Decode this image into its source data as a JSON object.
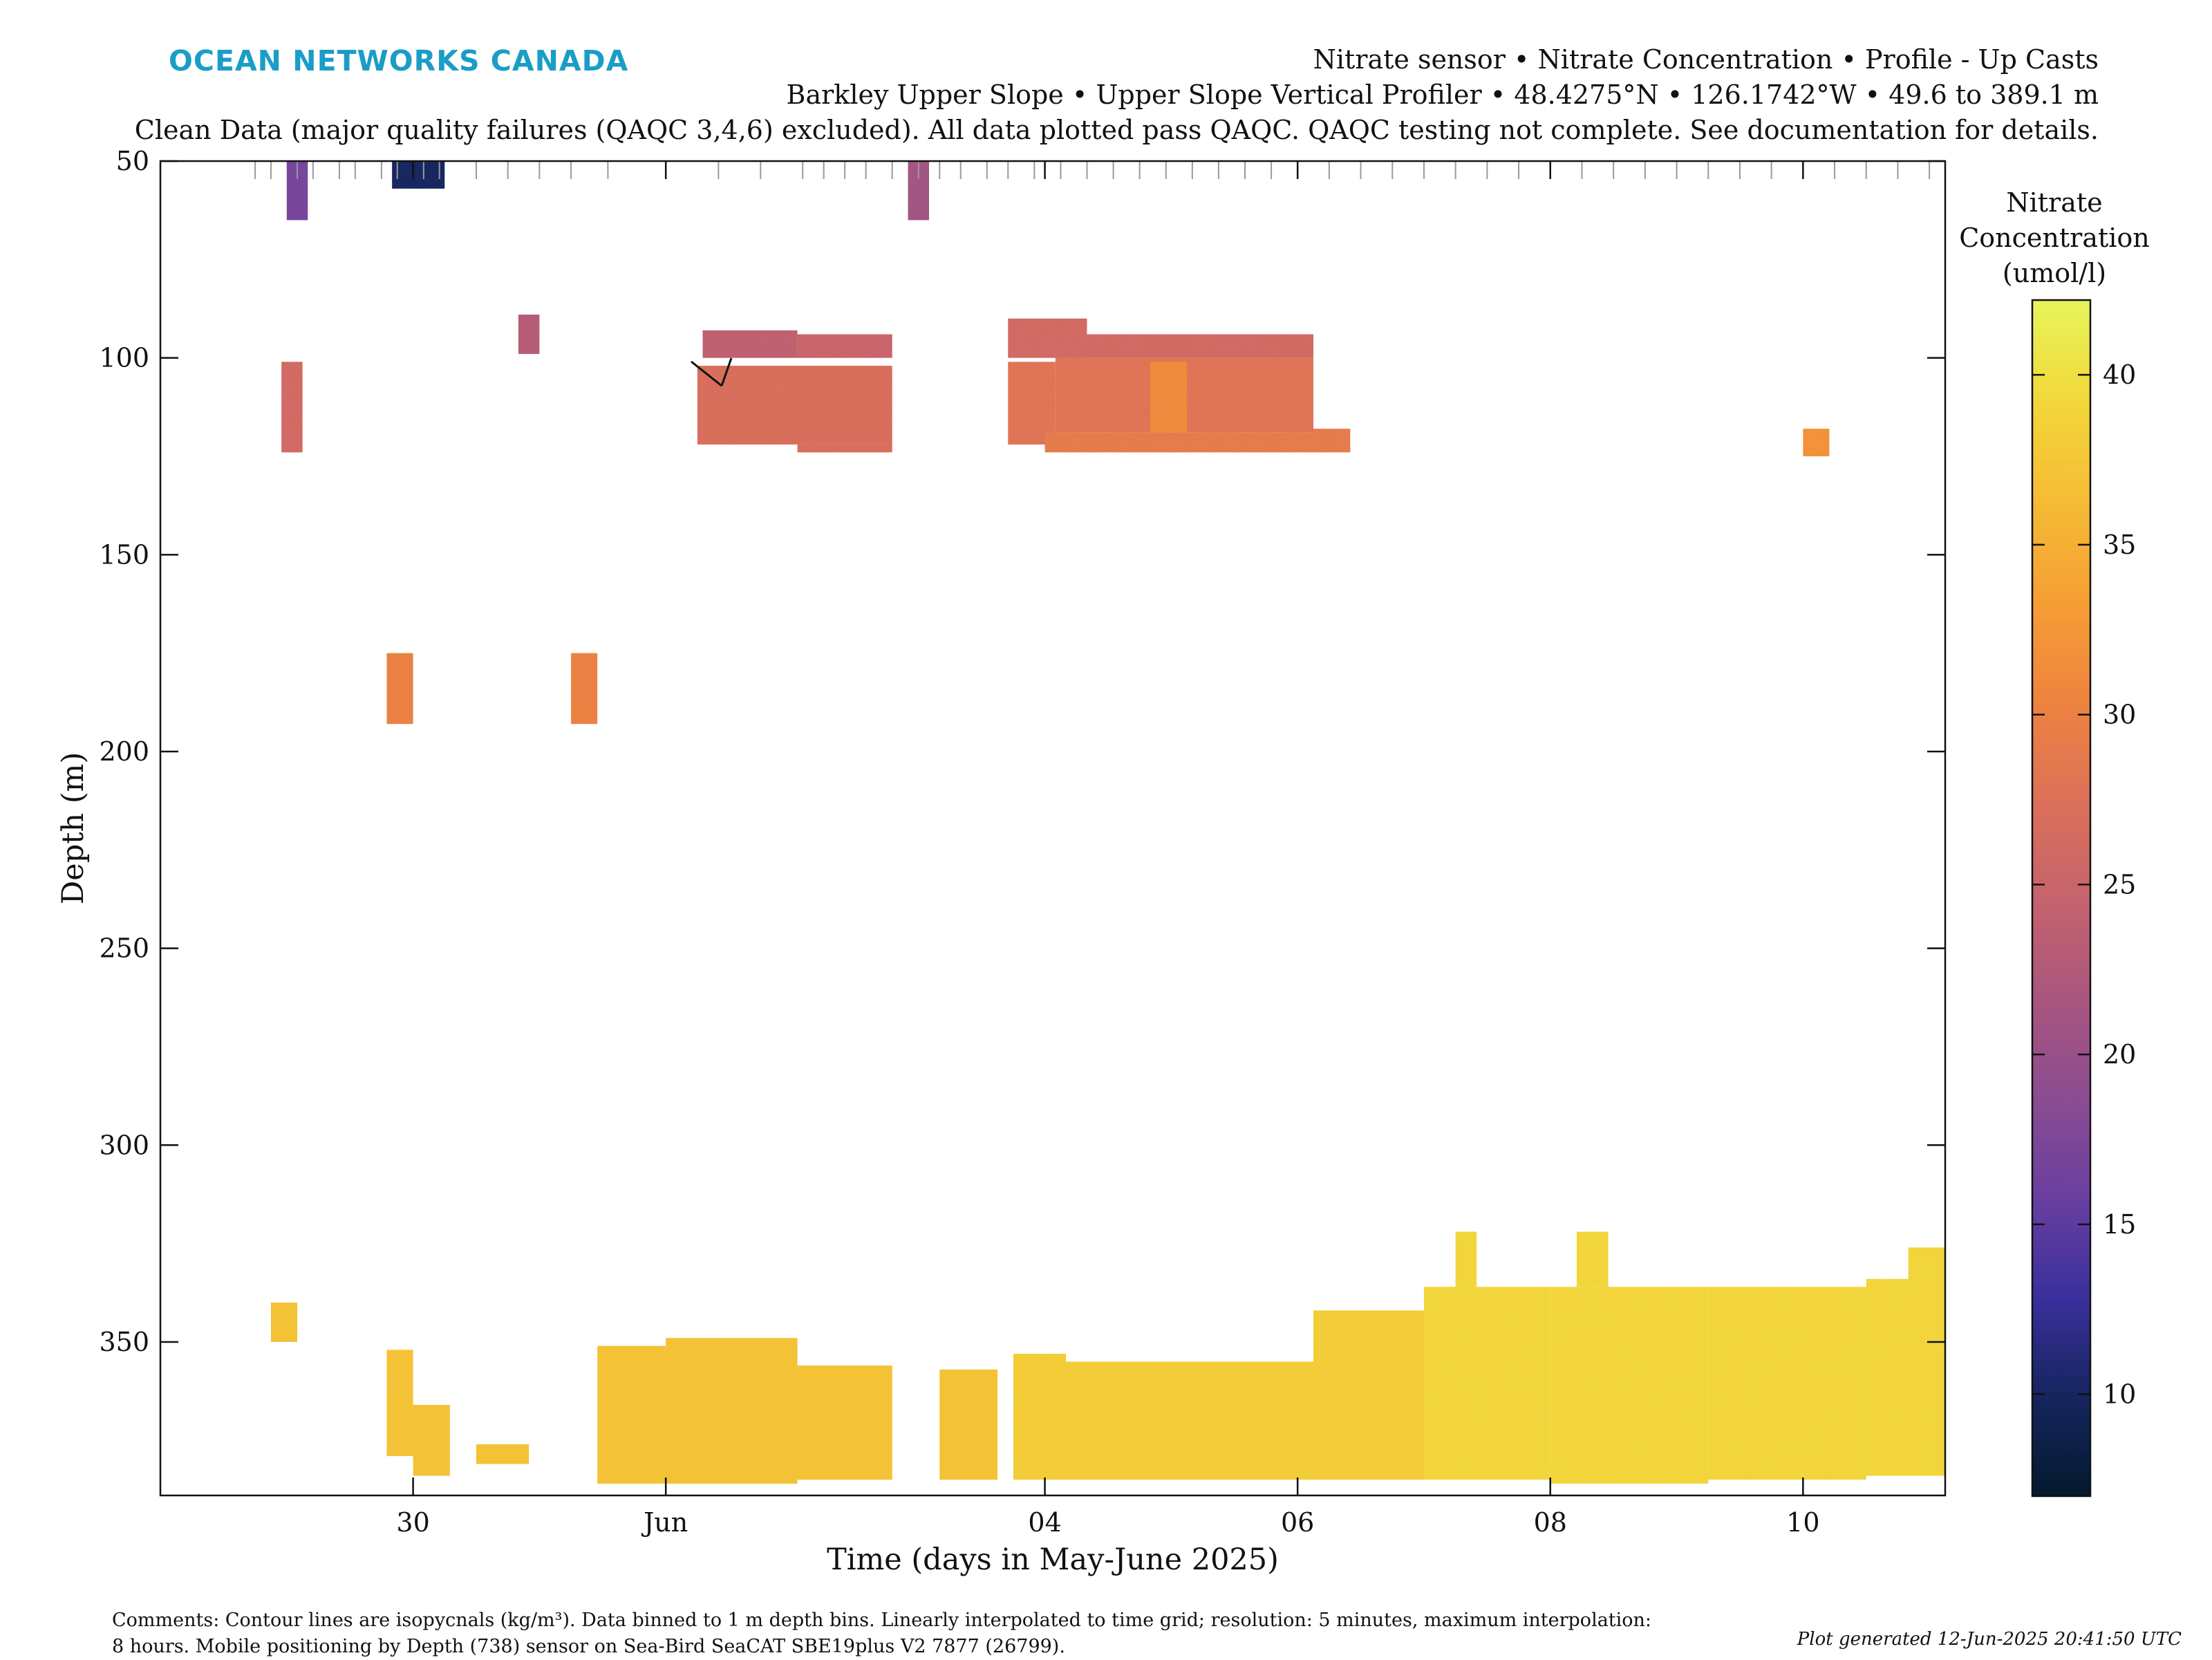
{
  "header": {
    "brand": "OCEAN NETWORKS CANADA",
    "line1": "Nitrate sensor • Nitrate Concentration • Profile - Up Casts",
    "line2": "Barkley Upper Slope • Upper Slope Vertical Profiler • 48.4275°N • 126.1742°W • 49.6 to 389.1 m",
    "line3": "Clean Data (major quality failures (QAQC 3,4,6) excluded). All data plotted pass QAQC. QAQC testing not complete. See documentation for details."
  },
  "colors": {
    "colormap": [
      "#04192e",
      "#15255e",
      "#3a2f9c",
      "#6a3fa0",
      "#8b4c91",
      "#a9567e",
      "#c6636d",
      "#dc7158",
      "#ee843f",
      "#f69f34",
      "#f5bc35",
      "#f2d83a",
      "#e7f55c"
    ],
    "axis": "#111111",
    "brand": "#1a9dc6"
  },
  "chart_data": {
    "type": "heatmap",
    "xlabel": "Time (days in May-June 2025)",
    "ylabel": "Depth (m)",
    "xlim": [
      "2025-05-28 00:00",
      "2025-06-11 03:00"
    ],
    "ylim": [
      389,
      50
    ],
    "y_reversed": true,
    "x_ticks": [
      {
        "t": "2025-05-30",
        "label": "30"
      },
      {
        "t": "2025-06-01",
        "label": "Jun"
      },
      {
        "t": "2025-06-04",
        "label": "04"
      },
      {
        "t": "2025-06-06",
        "label": "06"
      },
      {
        "t": "2025-06-08",
        "label": "08"
      },
      {
        "t": "2025-06-10",
        "label": "10"
      }
    ],
    "y_ticks": [
      50,
      100,
      150,
      200,
      250,
      300,
      350
    ],
    "colorbar": {
      "title": "Nitrate Concentration (umol/l)",
      "title_lines": [
        "Nitrate",
        "Concentration",
        "(umol/l)"
      ],
      "min": 7,
      "max": 42.2,
      "ticks": [
        10,
        15,
        20,
        25,
        30,
        35,
        40
      ]
    },
    "cast_times": [
      "2025-05-28 18:00",
      "2025-05-28 21:00",
      "2025-05-29 02:00",
      "2025-05-29 05:00",
      "2025-05-29 10:00",
      "2025-05-29 13:00",
      "2025-05-29 18:00",
      "2025-05-29 21:00",
      "2025-05-30 02:00",
      "2025-05-30 05:00",
      "2025-05-30 12:00",
      "2025-05-30 18:00",
      "2025-05-31 00:00",
      "2025-05-31 06:00",
      "2025-05-31 13:00",
      "2025-06-01 00:00",
      "2025-06-01 10:00",
      "2025-06-01 18:00",
      "2025-06-02 02:00",
      "2025-06-02 06:00",
      "2025-06-02 10:00",
      "2025-06-02 14:00",
      "2025-06-02 19:00",
      "2025-06-03 00:00",
      "2025-06-03 04:00",
      "2025-06-03 08:00",
      "2025-06-03 13:00",
      "2025-06-03 17:00",
      "2025-06-03 22:00",
      "2025-06-04 03:00",
      "2025-06-04 08:00",
      "2025-06-04 13:00",
      "2025-06-04 18:00",
      "2025-06-04 23:00",
      "2025-06-05 04:00",
      "2025-06-05 09:00",
      "2025-06-05 14:00",
      "2025-06-05 19:00",
      "2025-06-06 00:00",
      "2025-06-06 06:00",
      "2025-06-06 12:00",
      "2025-06-06 18:00",
      "2025-06-07 00:00",
      "2025-06-07 06:00",
      "2025-06-07 12:00",
      "2025-06-07 18:00",
      "2025-06-08 00:00",
      "2025-06-08 06:00",
      "2025-06-08 12:00",
      "2025-06-08 18:00",
      "2025-06-09 00:00",
      "2025-06-09 06:00",
      "2025-06-09 12:00",
      "2025-06-09 18:00",
      "2025-06-10 00:00",
      "2025-06-10 06:00",
      "2025-06-10 12:00",
      "2025-06-10 18:00",
      "2025-06-11 00:00"
    ],
    "bins": [
      {
        "t0": "2025-05-29 00:00",
        "t1": "2025-05-29 04:00",
        "z0": 50,
        "z1": 65,
        "v": 17
      },
      {
        "t0": "2025-05-29 20:00",
        "t1": "2025-05-30 06:00",
        "z0": 50,
        "z1": 57,
        "v": 10
      },
      {
        "t0": "2025-06-02 22:00",
        "t1": "2025-06-03 02:00",
        "z0": 50,
        "z1": 65,
        "v": 21
      },
      {
        "t0": "2025-05-28 23:00",
        "t1": "2025-05-29 03:00",
        "z0": 101,
        "z1": 124,
        "v": 26
      },
      {
        "t0": "2025-05-30 20:00",
        "t1": "2025-05-31 00:00",
        "z0": 89,
        "z1": 99,
        "v": 23
      },
      {
        "t0": "2025-05-29 19:00",
        "t1": "2025-05-30 00:00",
        "z0": 175,
        "z1": 193,
        "v": 30
      },
      {
        "t0": "2025-05-31 06:00",
        "t1": "2025-05-31 11:00",
        "z0": 175,
        "z1": 193,
        "v": 30
      },
      {
        "t0": "2025-06-01 07:00",
        "t1": "2025-06-02 01:00",
        "z0": 93,
        "z1": 100,
        "v": 24
      },
      {
        "t0": "2025-06-02 01:00",
        "t1": "2025-06-02 19:00",
        "z0": 94,
        "z1": 100,
        "v": 25
      },
      {
        "t0": "2025-06-01 06:00",
        "t1": "2025-06-02 19:00",
        "z0": 102,
        "z1": 122,
        "v": 27
      },
      {
        "t0": "2025-06-02 01:00",
        "t1": "2025-06-02 19:00",
        "z0": 122,
        "z1": 124,
        "v": 27
      },
      {
        "t0": "2025-06-03 18:00",
        "t1": "2025-06-04 02:00",
        "z0": 93,
        "z1": 99,
        "v": 26
      },
      {
        "t0": "2025-06-03 17:00",
        "t1": "2025-06-04 02:00",
        "z0": 101,
        "z1": 122,
        "v": 28
      },
      {
        "t0": "2025-06-03 17:00",
        "t1": "2025-06-04 08:00",
        "z0": 90,
        "z1": 100,
        "v": 26
      },
      {
        "t0": "2025-06-04 02:00",
        "t1": "2025-06-06 03:00",
        "z0": 94,
        "z1": 100,
        "v": 26
      },
      {
        "t0": "2025-06-04 02:00",
        "t1": "2025-06-06 03:00",
        "z0": 100,
        "z1": 119,
        "v": 28
      },
      {
        "t0": "2025-06-04 20:00",
        "t1": "2025-06-05 03:00",
        "z0": 101,
        "z1": 119,
        "v": 31
      },
      {
        "t0": "2025-06-04 00:00",
        "t1": "2025-06-06 03:00",
        "z0": 119,
        "z1": 124,
        "v": 29
      },
      {
        "t0": "2025-06-06 03:00",
        "t1": "2025-06-06 10:00",
        "z0": 118,
        "z1": 124,
        "v": 29
      },
      {
        "t0": "2025-06-10 00:00",
        "t1": "2025-06-10 05:00",
        "z0": 118,
        "z1": 125,
        "v": 32
      },
      {
        "t0": "2025-05-28 21:00",
        "t1": "2025-05-29 02:00",
        "z0": 340,
        "z1": 350,
        "v": 37
      },
      {
        "t0": "2025-05-29 19:00",
        "t1": "2025-05-30 00:00",
        "z0": 352,
        "z1": 379,
        "v": 37
      },
      {
        "t0": "2025-05-30 00:00",
        "t1": "2025-05-30 07:00",
        "z0": 366,
        "z1": 384,
        "v": 37
      },
      {
        "t0": "2025-05-30 12:00",
        "t1": "2025-05-30 22:00",
        "z0": 376,
        "z1": 381,
        "v": 37
      },
      {
        "t0": "2025-05-31 11:00",
        "t1": "2025-06-01 00:00",
        "z0": 351,
        "z1": 386,
        "v": 37
      },
      {
        "t0": "2025-06-01 00:00",
        "t1": "2025-06-02 01:00",
        "z0": 349,
        "z1": 386,
        "v": 37
      },
      {
        "t0": "2025-06-02 01:00",
        "t1": "2025-06-02 19:00",
        "z0": 356,
        "z1": 385,
        "v": 37
      },
      {
        "t0": "2025-06-03 04:00",
        "t1": "2025-06-03 15:00",
        "z0": 357,
        "z1": 385,
        "v": 37
      },
      {
        "t0": "2025-06-03 18:00",
        "t1": "2025-06-04 04:00",
        "z0": 353,
        "z1": 385,
        "v": 38
      },
      {
        "t0": "2025-06-04 04:00",
        "t1": "2025-06-06 03:00",
        "z0": 355,
        "z1": 385,
        "v": 38
      },
      {
        "t0": "2025-06-06 03:00",
        "t1": "2025-06-07 00:00",
        "z0": 342,
        "z1": 385,
        "v": 38
      },
      {
        "t0": "2025-06-07 00:00",
        "t1": "2025-06-08 00:00",
        "z0": 336,
        "z1": 385,
        "v": 39
      },
      {
        "t0": "2025-06-08 00:00",
        "t1": "2025-06-09 06:00",
        "z0": 336,
        "z1": 386,
        "v": 39
      },
      {
        "t0": "2025-06-09 06:00",
        "t1": "2025-06-10 12:00",
        "z0": 336,
        "z1": 385,
        "v": 39
      },
      {
        "t0": "2025-06-10 12:00",
        "t1": "2025-06-11 03:00",
        "z0": 334,
        "z1": 384,
        "v": 39
      },
      {
        "t0": "2025-06-07 06:00",
        "t1": "2025-06-07 10:00",
        "z0": 322,
        "z1": 336,
        "v": 39
      },
      {
        "t0": "2025-06-08 05:00",
        "t1": "2025-06-08 11:00",
        "z0": 322,
        "z1": 336,
        "v": 39
      },
      {
        "t0": "2025-06-10 20:00",
        "t1": "2025-06-11 03:00",
        "z0": 326,
        "z1": 336,
        "v": 39
      }
    ]
  },
  "footer": {
    "comments_line1": "Comments: Contour lines are isopycnals (kg/m³). Data binned to 1 m depth bins. Linearly interpolated to time grid; resolution: 5 minutes, maximum interpolation:",
    "comments_line2": "8 hours. Mobile positioning by Depth (738) sensor on Sea-Bird SeaCAT SBE19plus V2 7877 (26799).",
    "generated": "Plot generated 12-Jun-2025 20:41:50 UTC"
  }
}
